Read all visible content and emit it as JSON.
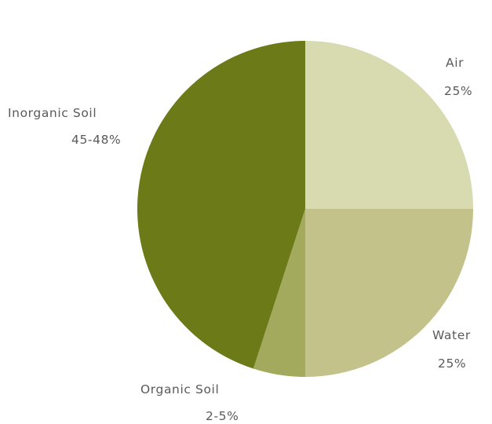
{
  "chart_data": {
    "type": "pie",
    "slices": [
      {
        "key": "air",
        "label": "Air",
        "value_label": "25%",
        "value": 25,
        "color": "#d8dab0"
      },
      {
        "key": "water",
        "label": "Water",
        "value_label": "25%",
        "value": 25,
        "color": "#c3c28a"
      },
      {
        "key": "organic-soil",
        "label": "Organic Soil",
        "value_label": "2-5%",
        "value": 5,
        "color": "#a3aa5e"
      },
      {
        "key": "inorganic-soil",
        "label": "Inorganic Soil",
        "value_label": "45-48%",
        "value": 45,
        "color": "#6c7a18"
      }
    ]
  }
}
